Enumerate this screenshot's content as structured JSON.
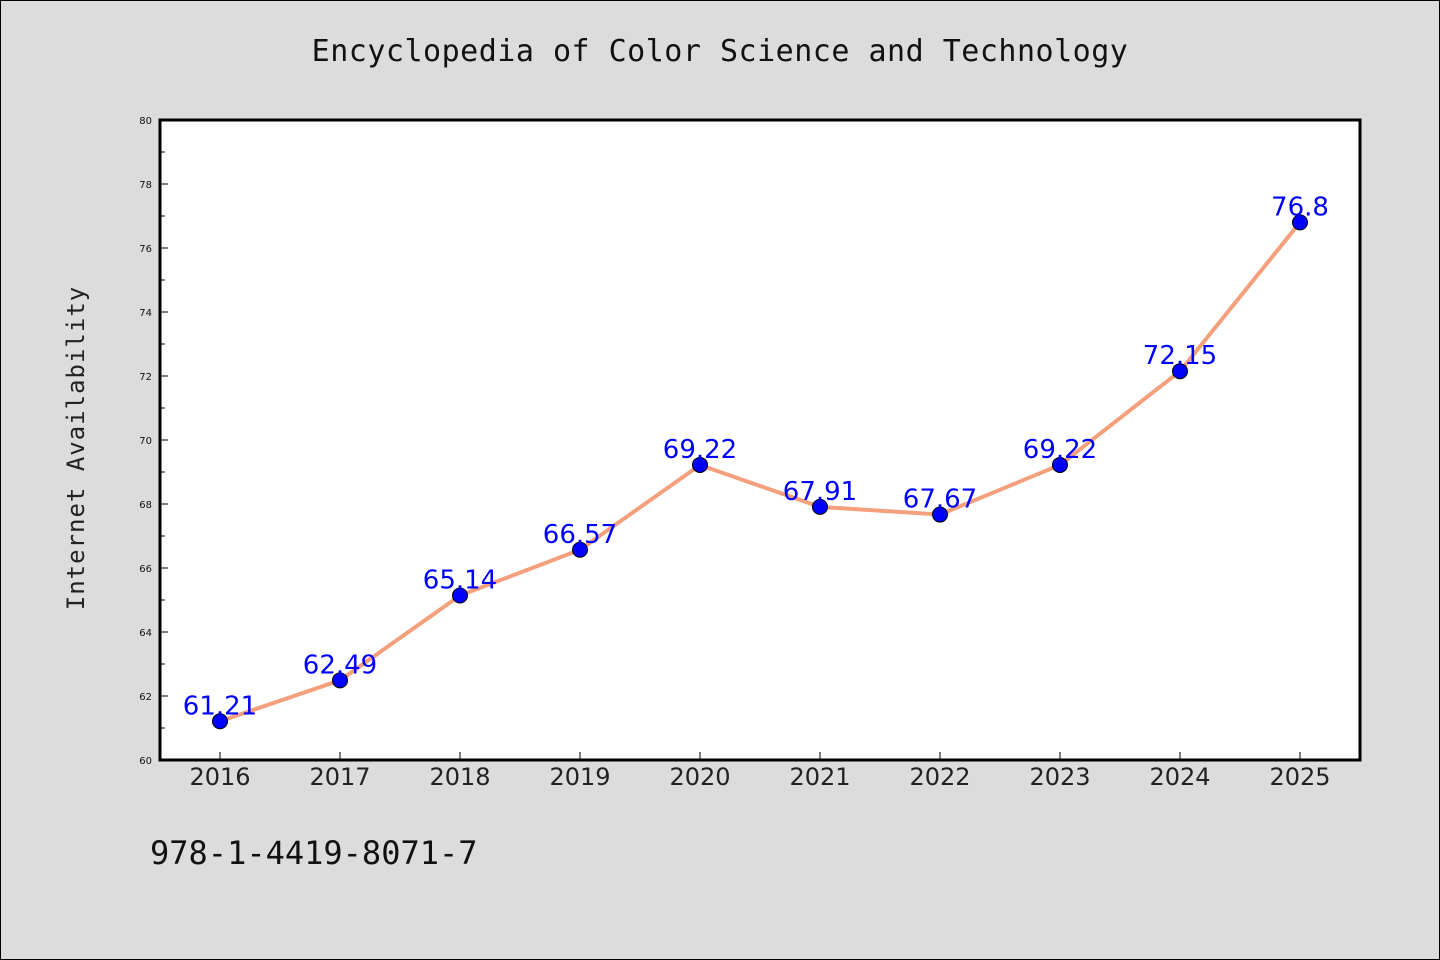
{
  "chart_data": {
    "type": "line",
    "title": "Encyclopedia of Color Science and Technology",
    "xlabel": "",
    "ylabel": "Internet Availability",
    "categories": [
      "2016",
      "2017",
      "2018",
      "2019",
      "2020",
      "2021",
      "2022",
      "2023",
      "2024",
      "2025"
    ],
    "series": [
      {
        "values": [
          61.21,
          62.49,
          65.14,
          66.57,
          69.22,
          67.91,
          67.67,
          69.22,
          72.15,
          76.8
        ],
        "labels": [
          "61.21",
          "62.49",
          "65.14",
          "66.57",
          "69.22",
          "67.91",
          "67.67",
          "69.22",
          "72.15",
          "76.8"
        ]
      }
    ],
    "ylim": [
      60,
      80
    ],
    "yticks": [
      "60",
      "62",
      "64",
      "66",
      "68",
      "70",
      "72",
      "74",
      "76",
      "78",
      "80"
    ],
    "grid": false,
    "line_color": "#f4a07c",
    "marker_color": "#0000ff",
    "label_color": "#0000ff"
  },
  "footer": {
    "isbn": "978-1-4419-8071-7"
  }
}
